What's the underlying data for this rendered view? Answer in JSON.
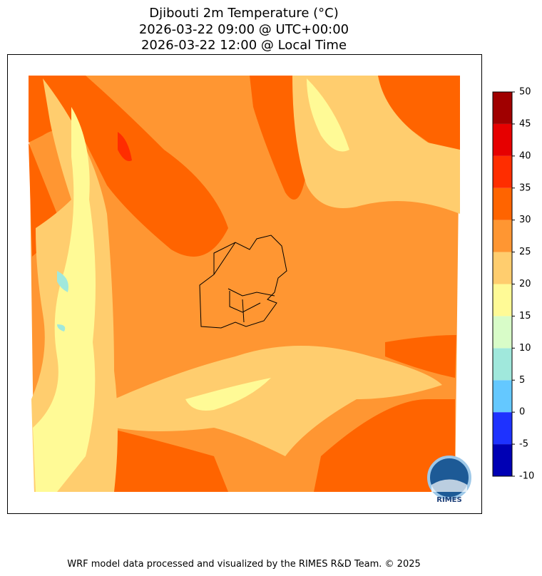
{
  "title": [
    "Djibouti 2m Temperature (°C)",
    "2026-03-22 09:00 @ UTC+00:00",
    "2026-03-22 12:00 @ Local Time"
  ],
  "colorbar": {
    "ticks": [
      -10,
      -5,
      0,
      5,
      10,
      15,
      20,
      25,
      30,
      35,
      40,
      45,
      50
    ],
    "colors": [
      "#0000b4",
      "#1e32ff",
      "#64c8ff",
      "#a0e8dc",
      "#d8fcc8",
      "#fffa96",
      "#ffcd6e",
      "#ff9632",
      "#ff6400",
      "#ff2d00",
      "#e60000",
      "#a00000"
    ]
  },
  "logo": "RIMES",
  "footer": "WRF model data processed and visualized by the RIMES R&D Team. © 2025"
}
